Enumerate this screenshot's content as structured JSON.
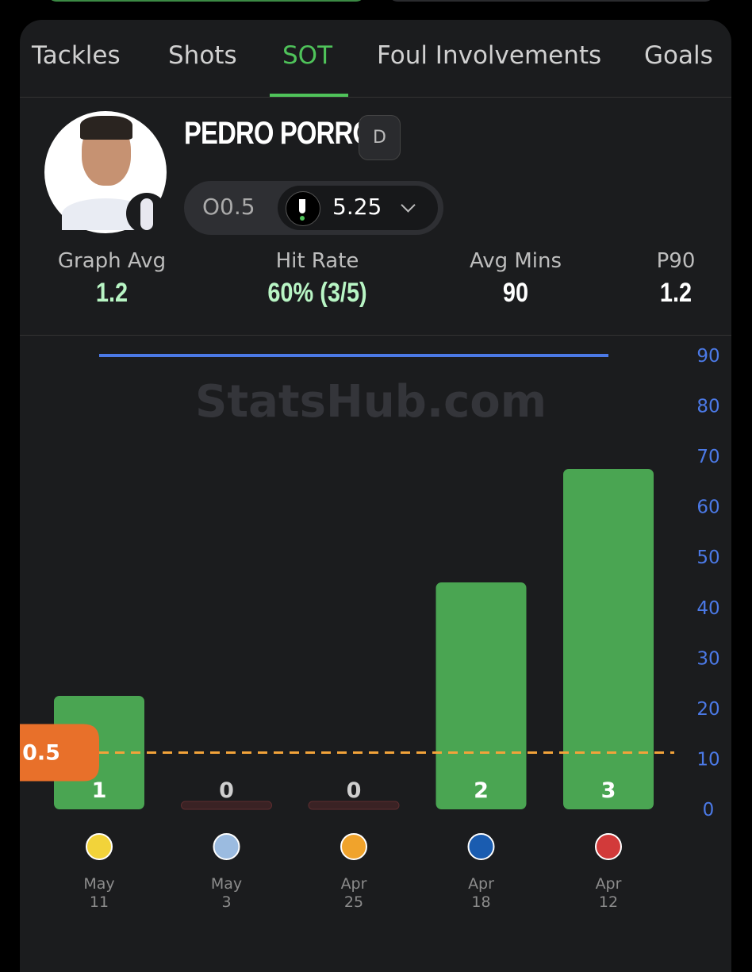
{
  "tabs": [
    "Tackles",
    "Shots",
    "SOT",
    "Foul Involvements",
    "Goals"
  ],
  "active_tab": 2,
  "player": {
    "name": "PEDRO PORRO",
    "position": "D",
    "prop_line": "O0.5",
    "odds": "5.25"
  },
  "stats": [
    {
      "label": "Graph Avg",
      "value": "1.2"
    },
    {
      "label": "Hit Rate",
      "value": "60% (3/5)"
    },
    {
      "label": "Avg Mins",
      "value": "90"
    },
    {
      "label": "P90",
      "value": "1.2"
    }
  ],
  "watermark": "StatsHub.com",
  "chart_data": {
    "type": "bar",
    "categories": [
      "May 11",
      "May 3",
      "Apr 25",
      "Apr 18",
      "Apr 12"
    ],
    "series": [
      {
        "values": [
          1,
          0,
          0,
          2,
          3
        ],
        "color": "#4aa552"
      },
      {
        "values": [
          90,
          90,
          90,
          90,
          90
        ],
        "color": "#4b79e6",
        "axis": "y2",
        "type": "line"
      }
    ],
    "ylim": [
      0,
      4
    ],
    "y2lim": [
      0,
      90
    ],
    "y2ticks": [
      0,
      10,
      20,
      30,
      40,
      50,
      60,
      70,
      80,
      90
    ],
    "line": 0.5,
    "line_color": "#f2a33a"
  }
}
